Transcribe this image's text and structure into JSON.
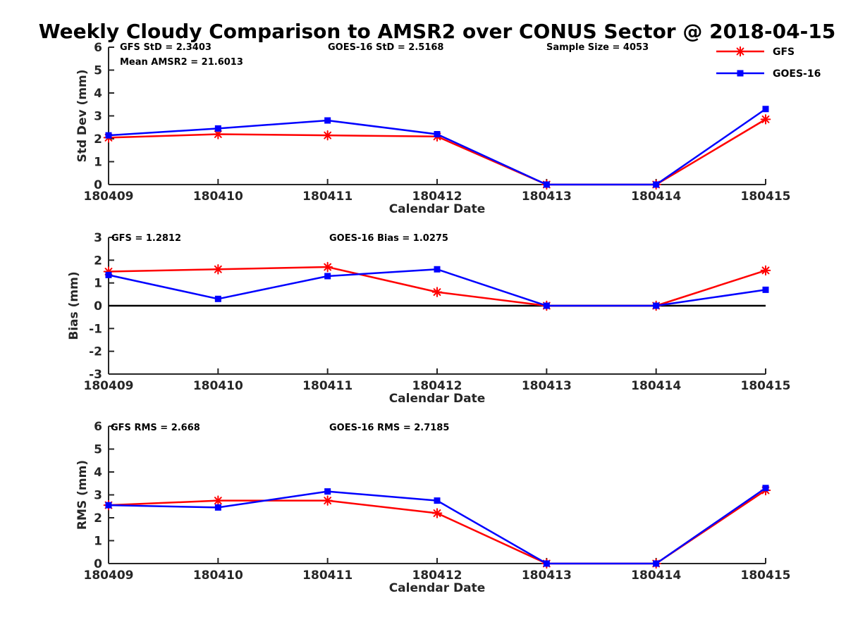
{
  "title": "Weekly Cloudy Comparison to AMSR2 over CONUS Sector @ 2018-04-15",
  "colors": {
    "gfs": "#ff0000",
    "goes16": "#0000ff",
    "axis": "#262626",
    "zero_line": "#000000"
  },
  "legend": {
    "position": "top-right",
    "items": [
      {
        "label": "GFS",
        "color": "#ff0000",
        "marker": "asterisk-icon"
      },
      {
        "label": "GOES-16",
        "color": "#0000ff",
        "marker": "square-icon"
      }
    ]
  },
  "chart_data": [
    {
      "type": "line",
      "name": "std-dev-panel",
      "ylabel": "Std Dev (mm)",
      "xlabel": "Calendar Date",
      "ylim": [
        0,
        6
      ],
      "yticks": [
        0,
        1,
        2,
        3,
        4,
        5,
        6
      ],
      "grid": false,
      "zero_line": false,
      "categories": [
        "180409",
        "180410",
        "180411",
        "180412",
        "180413",
        "180414",
        "180415"
      ],
      "series": [
        {
          "name": "GFS",
          "color": "#ff0000",
          "marker": "asterisk",
          "values": [
            2.05,
            2.2,
            2.15,
            2.1,
            0,
            0,
            2.85
          ]
        },
        {
          "name": "GOES-16",
          "color": "#0000ff",
          "marker": "square",
          "values": [
            2.15,
            2.45,
            2.8,
            2.2,
            0,
            0,
            3.3
          ]
        }
      ],
      "annotations": [
        "GFS StD = 2.3403",
        "Mean AMSR2 = 21.6013",
        "GOES-16 StD = 2.5168",
        "Sample Size = 4053"
      ]
    },
    {
      "type": "line",
      "name": "bias-panel",
      "ylabel": "Bias (mm)",
      "xlabel": "Calendar Date",
      "ylim": [
        -3,
        3
      ],
      "yticks": [
        3,
        2,
        1,
        0,
        -1,
        -2,
        -3
      ],
      "grid": false,
      "zero_line": true,
      "categories": [
        "180409",
        "180410",
        "180411",
        "180412",
        "180413",
        "180414",
        "180415"
      ],
      "series": [
        {
          "name": "GFS",
          "color": "#ff0000",
          "marker": "asterisk",
          "values": [
            1.5,
            1.6,
            1.7,
            0.6,
            0,
            0,
            1.55
          ]
        },
        {
          "name": "GOES-16",
          "color": "#0000ff",
          "marker": "square",
          "values": [
            1.35,
            0.3,
            1.3,
            1.6,
            0,
            0,
            0.7
          ]
        }
      ],
      "annotations": [
        "GFS = 1.2812",
        "GOES-16 Bias  = 1.0275"
      ]
    },
    {
      "type": "line",
      "name": "rms-panel",
      "ylabel": "RMS (mm)",
      "xlabel": "Calendar Date",
      "ylim": [
        0,
        6
      ],
      "yticks": [
        0,
        1,
        2,
        3,
        4,
        5,
        6
      ],
      "grid": false,
      "zero_line": false,
      "categories": [
        "180409",
        "180410",
        "180411",
        "180412",
        "180413",
        "180414",
        "180415"
      ],
      "series": [
        {
          "name": "GFS",
          "color": "#ff0000",
          "marker": "asterisk",
          "values": [
            2.55,
            2.75,
            2.75,
            2.2,
            0,
            0,
            3.2
          ]
        },
        {
          "name": "GOES-16",
          "color": "#0000ff",
          "marker": "square",
          "values": [
            2.55,
            2.45,
            3.15,
            2.75,
            0,
            0,
            3.3
          ]
        }
      ],
      "annotations": [
        "GFS RMS = 2.668",
        "GOES-16 RMS = 2.7185"
      ]
    }
  ]
}
